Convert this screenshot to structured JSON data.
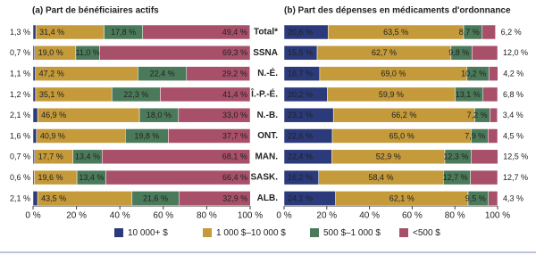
{
  "chart_data": [
    {
      "type": "bar",
      "orientation": "horizontal",
      "stacked": true,
      "title": "(a) Part de bénéficiaires actifs",
      "categories": [
        "Total*",
        "SSNA",
        "N.-É.",
        "Î.-P.-É.",
        "N.-B.",
        "ONT.",
        "MAN.",
        "SASK.",
        "ALB."
      ],
      "xlim": [
        0,
        100
      ],
      "xticks": [
        {
          "value": 0,
          "label": "0 %"
        },
        {
          "value": 20,
          "label": "20 %"
        },
        {
          "value": 40,
          "label": "40 %"
        },
        {
          "value": 60,
          "label": "60 %"
        },
        {
          "value": 80,
          "label": "80 %"
        },
        {
          "value": 100,
          "label": "100 %"
        }
      ],
      "series": [
        {
          "name": "10 000+ $",
          "color": "#2b3a7a",
          "values": [
            1.3,
            0.7,
            1.1,
            1.2,
            2.1,
            1.6,
            0.7,
            0.6,
            2.1
          ],
          "value_labels": [
            "1,3 %",
            "0,7 %",
            "1,1 %",
            "1,2 %",
            "2,1 %",
            "1,6 %",
            "0,7 %",
            "0,6 %",
            "2,1 %"
          ]
        },
        {
          "name": "1 000 $–10 000 $",
          "color": "#c49a3a",
          "values": [
            31.4,
            19.0,
            47.2,
            35.1,
            46.9,
            40.9,
            17.7,
            19.6,
            43.5
          ],
          "value_labels": [
            "31,4 %",
            "19,0 %",
            "47,2 %",
            "35,1 %",
            "46,9 %",
            "40,9 %",
            "17,7 %",
            "19,6 %",
            "43,5 %"
          ]
        },
        {
          "name": "500 $–1 000 $",
          "color": "#4b7a5a",
          "values": [
            17.8,
            11.0,
            22.4,
            22.3,
            18.0,
            19.8,
            13.4,
            13.4,
            21.6
          ],
          "value_labels": [
            "17,8 %",
            "11,0 %",
            "22,4 %",
            "22,3 %",
            "18,0 %",
            "19,8 %",
            "13,4 %",
            "13,4 %",
            "21,6 %"
          ]
        },
        {
          "name": "<500 $",
          "color": "#a8506a",
          "values": [
            49.4,
            69.3,
            29.2,
            41.4,
            33.0,
            37.7,
            68.1,
            66.4,
            32.9
          ],
          "value_labels": [
            "49,4 %",
            "69,3 %",
            "29,2 %",
            "41,4 %",
            "33,0 %",
            "37,7 %",
            "68,1 %",
            "66,4 %",
            "32,9 %"
          ]
        }
      ]
    },
    {
      "type": "bar",
      "orientation": "horizontal",
      "stacked": true,
      "title": "(b) Part des dépenses en médicaments d'ordonnance",
      "xlim": [
        0,
        100
      ],
      "xticks": [
        {
          "value": 0,
          "label": "0 %"
        },
        {
          "value": 20,
          "label": "20 %"
        },
        {
          "value": 40,
          "label": "40 %"
        },
        {
          "value": 60,
          "label": "60 %"
        },
        {
          "value": 80,
          "label": "80 %"
        },
        {
          "value": 100,
          "label": "100 %"
        }
      ],
      "series": [
        {
          "color": "#2b3a7a",
          "values": [
            20.6,
            15.5,
            16.7,
            20.2,
            23.1,
            22.6,
            22.4,
            16.2,
            24.1
          ],
          "value_labels": [
            "20,6 %",
            "15,5 %",
            "16,7 %",
            "20,2 %",
            "23,1 %",
            "22,6 %",
            "22,4 %",
            "16,2 %",
            "24,1 %"
          ]
        },
        {
          "color": "#c49a3a",
          "values": [
            63.5,
            62.7,
            69.0,
            59.9,
            66.2,
            65.0,
            52.9,
            58.4,
            62.1
          ],
          "value_labels": [
            "63,5 %",
            "62,7 %",
            "69,0 %",
            "59,9 %",
            "66,2 %",
            "65,0 %",
            "52,9 %",
            "58,4 %",
            "62,1 %"
          ]
        },
        {
          "color": "#4b7a5a",
          "values": [
            8.7,
            9.8,
            10.2,
            13.1,
            7.2,
            7.9,
            12.3,
            12.7,
            9.5
          ],
          "value_labels": [
            "8,7 %",
            "9,8 %",
            "10,2 %",
            "13,1 %",
            "7,2 %",
            "7,9 %",
            "12,3 %",
            "12,7 %",
            "9,5 %"
          ]
        },
        {
          "color": "#a8506a",
          "values": [
            6.2,
            12.0,
            4.2,
            6.8,
            3.4,
            4.5,
            12.5,
            12.7,
            4.3
          ],
          "value_labels": [
            "6,2 %",
            "12,0 %",
            "4,2 %",
            "6,8 %",
            "3,4 %",
            "4,5 %",
            "12,5 %",
            "12,7 %",
            "4,3 %"
          ]
        }
      ]
    }
  ]
}
